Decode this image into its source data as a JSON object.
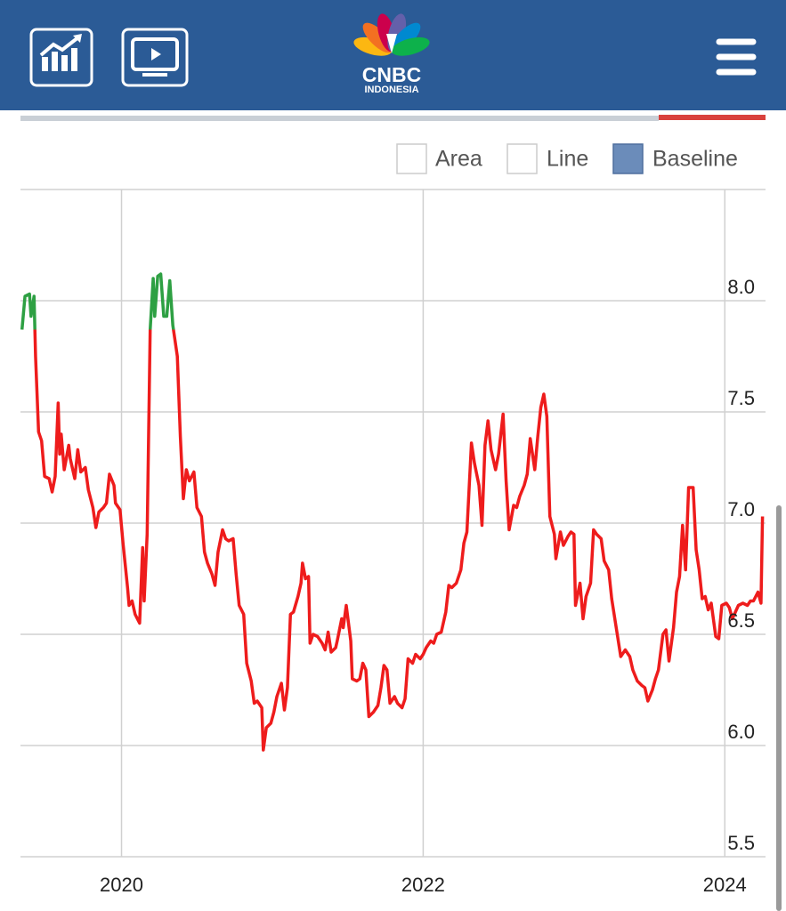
{
  "header": {
    "logo_text": "CNBC",
    "logo_subtext": "INDONESIA"
  },
  "controls": {
    "chart_types": [
      "Area",
      "Line",
      "Baseline"
    ]
  },
  "chart_data": {
    "type": "baseline",
    "baseline": 7.87,
    "up_color": "#2ea043",
    "down_color": "#ee1c1c",
    "grid": true,
    "xlim": [
      2019.33,
      2024.27
    ],
    "xticks": [
      2020,
      2022,
      2024
    ],
    "ylim": [
      5.5,
      8.5
    ],
    "yticks": [
      {
        "value": 5.5,
        "label": "5.5"
      },
      {
        "value": 6,
        "label": "6.0"
      },
      {
        "value": 6.5,
        "label": "6.5"
      },
      {
        "value": 7,
        "label": "7.0"
      },
      {
        "value": 7.5,
        "label": "7.5"
      },
      {
        "value": 8,
        "label": "8.0"
      }
    ],
    "x": [
      2019.34,
      2019.36,
      2019.39,
      2019.4,
      2019.42,
      2019.43,
      2019.45,
      2019.47,
      2019.49,
      2019.52,
      2019.54,
      2019.56,
      2019.58,
      2019.59,
      2019.6,
      2019.62,
      2019.65,
      2019.66,
      2019.69,
      2019.71,
      2019.73,
      2019.76,
      2019.78,
      2019.81,
      2019.83,
      2019.85,
      2019.88,
      2019.9,
      2019.92,
      2019.95,
      2019.96,
      2019.99,
      2020.01,
      2020.04,
      2020.05,
      2020.07,
      2020.09,
      2020.12,
      2020.14,
      2020.15,
      2020.17,
      2020.19,
      2020.21,
      2020.22,
      2020.24,
      2020.26,
      2020.28,
      2020.3,
      2020.32,
      2020.34,
      2020.37,
      2020.39,
      2020.41,
      2020.43,
      2020.45,
      2020.48,
      2020.5,
      2020.53,
      2020.55,
      2020.57,
      2020.6,
      2020.62,
      2020.64,
      2020.67,
      2020.69,
      2020.71,
      2020.74,
      2020.76,
      2020.78,
      2020.81,
      2020.83,
      2020.86,
      2020.88,
      2020.9,
      2020.93,
      2020.94,
      2020.96,
      2020.99,
      2021.01,
      2021.03,
      2021.06,
      2021.08,
      2021.1,
      2021.12,
      2021.14,
      2021.17,
      2021.19,
      2021.2,
      2021.22,
      2021.24,
      2021.25,
      2021.27,
      2021.3,
      2021.33,
      2021.35,
      2021.37,
      2021.39,
      2021.42,
      2021.43,
      2021.46,
      2021.47,
      2021.49,
      2021.52,
      2021.53,
      2021.56,
      2021.58,
      2021.6,
      2021.62,
      2021.64,
      2021.67,
      2021.7,
      2021.72,
      2021.74,
      2021.76,
      2021.78,
      2021.81,
      2021.83,
      2021.86,
      2021.88,
      2021.9,
      2021.93,
      2021.95,
      2021.98,
      2022.0,
      2022.02,
      2022.05,
      2022.07,
      2022.09,
      2022.12,
      2022.15,
      2022.17,
      2022.19,
      2022.22,
      2022.25,
      2022.27,
      2022.29,
      2022.32,
      2022.34,
      2022.37,
      2022.39,
      2022.41,
      2022.43,
      2022.45,
      2022.48,
      2022.5,
      2022.53,
      2022.55,
      2022.57,
      2022.6,
      2022.62,
      2022.64,
      2022.67,
      2022.69,
      2022.71,
      2022.74,
      2022.76,
      2022.78,
      2022.8,
      2022.82,
      2022.84,
      2022.87,
      2022.88,
      2022.91,
      2022.93,
      2022.96,
      2022.98,
      2023.0,
      2023.01,
      2023.04,
      2023.06,
      2023.08,
      2023.11,
      2023.13,
      2023.15,
      2023.18,
      2023.2,
      2023.23,
      2023.25,
      2023.28,
      2023.31,
      2023.34,
      2023.37,
      2023.39,
      2023.42,
      2023.45,
      2023.47,
      2023.49,
      2023.52,
      2023.54,
      2023.56,
      2023.59,
      2023.61,
      2023.63,
      2023.66,
      2023.68,
      2023.7,
      2023.72,
      2023.74,
      2023.76,
      2023.79,
      2023.81,
      2023.83,
      2023.85,
      2023.87,
      2023.89,
      2023.91,
      2023.94,
      2023.96,
      2023.98,
      2024.01,
      2024.03,
      2024.05,
      2024.07,
      2024.09,
      2024.12,
      2024.15,
      2024.17,
      2024.19,
      2024.22,
      2024.24,
      2024.25
    ],
    "values": [
      7.87,
      8.02,
      8.03,
      7.93,
      8.02,
      7.75,
      7.41,
      7.37,
      7.21,
      7.2,
      7.14,
      7.21,
      7.54,
      7.31,
      7.4,
      7.24,
      7.35,
      7.29,
      7.2,
      7.33,
      7.23,
      7.25,
      7.15,
      7.07,
      6.98,
      7.05,
      7.07,
      7.09,
      7.22,
      7.17,
      7.09,
      7.06,
      6.91,
      6.71,
      6.63,
      6.65,
      6.59,
      6.55,
      6.89,
      6.65,
      6.95,
      7.87,
      8.1,
      7.93,
      8.11,
      8.12,
      7.93,
      7.93,
      8.09,
      7.89,
      7.75,
      7.39,
      7.11,
      7.24,
      7.19,
      7.23,
      7.07,
      7.03,
      6.87,
      6.82,
      6.77,
      6.72,
      6.87,
      6.97,
      6.93,
      6.92,
      6.93,
      6.77,
      6.63,
      6.59,
      6.37,
      6.29,
      6.19,
      6.2,
      6.17,
      5.98,
      6.08,
      6.1,
      6.15,
      6.22,
      6.28,
      6.16,
      6.26,
      6.59,
      6.6,
      6.67,
      6.73,
      6.82,
      6.75,
      6.76,
      6.46,
      6.5,
      6.49,
      6.46,
      6.43,
      6.51,
      6.42,
      6.44,
      6.47,
      6.57,
      6.53,
      6.63,
      6.47,
      6.3,
      6.29,
      6.3,
      6.37,
      6.34,
      6.13,
      6.15,
      6.18,
      6.26,
      6.36,
      6.34,
      6.19,
      6.22,
      6.19,
      6.17,
      6.21,
      6.39,
      6.37,
      6.41,
      6.39,
      6.41,
      6.44,
      6.47,
      6.46,
      6.5,
      6.51,
      6.6,
      6.72,
      6.71,
      6.73,
      6.79,
      6.91,
      6.96,
      7.36,
      7.27,
      7.17,
      6.99,
      7.35,
      7.46,
      7.33,
      7.24,
      7.31,
      7.49,
      7.19,
      6.97,
      7.08,
      7.07,
      7.12,
      7.17,
      7.22,
      7.38,
      7.24,
      7.39,
      7.52,
      7.58,
      7.48,
      7.03,
      6.95,
      6.84,
      6.96,
      6.9,
      6.94,
      6.96,
      6.95,
      6.63,
      6.73,
      6.57,
      6.67,
      6.73,
      6.97,
      6.95,
      6.93,
      6.83,
      6.79,
      6.66,
      6.53,
      6.4,
      6.43,
      6.4,
      6.34,
      6.29,
      6.27,
      6.26,
      6.2,
      6.25,
      6.3,
      6.34,
      6.5,
      6.52,
      6.38,
      6.53,
      6.69,
      6.76,
      6.99,
      6.79,
      7.16,
      7.16,
      6.88,
      6.79,
      6.66,
      6.67,
      6.61,
      6.64,
      6.49,
      6.48,
      6.63,
      6.64,
      6.62,
      6.57,
      6.6,
      6.63,
      6.64,
      6.63,
      6.65,
      6.65,
      6.69,
      6.64,
      7.03
    ]
  }
}
